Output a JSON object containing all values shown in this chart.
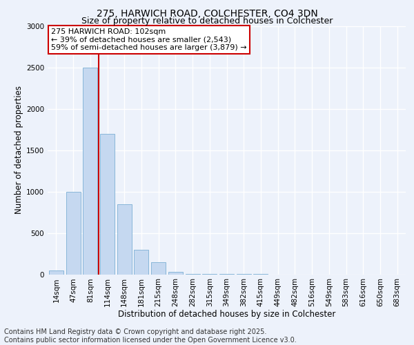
{
  "title_line1": "275, HARWICH ROAD, COLCHESTER, CO4 3DN",
  "title_line2": "Size of property relative to detached houses in Colchester",
  "xlabel": "Distribution of detached houses by size in Colchester",
  "ylabel": "Number of detached properties",
  "categories": [
    "14sqm",
    "47sqm",
    "81sqm",
    "114sqm",
    "148sqm",
    "181sqm",
    "215sqm",
    "248sqm",
    "282sqm",
    "315sqm",
    "349sqm",
    "382sqm",
    "415sqm",
    "449sqm",
    "482sqm",
    "516sqm",
    "549sqm",
    "583sqm",
    "616sqm",
    "650sqm",
    "683sqm"
  ],
  "values": [
    50,
    1000,
    2500,
    1700,
    850,
    300,
    150,
    30,
    8,
    4,
    2,
    1,
    1,
    0,
    0,
    0,
    0,
    0,
    0,
    0,
    0
  ],
  "bar_color": "#c5d8f0",
  "bar_edge_color": "#7bafd4",
  "property_line_x": 2.5,
  "property_label": "275 HARWICH ROAD: 102sqm",
  "annotation_line1": "← 39% of detached houses are smaller (2,543)",
  "annotation_line2": "59% of semi-detached houses are larger (3,879) →",
  "annotation_box_color": "#ffffff",
  "annotation_box_edge": "#cc0000",
  "line_color": "#cc0000",
  "ylim": [
    0,
    3000
  ],
  "yticks": [
    0,
    500,
    1000,
    1500,
    2000,
    2500,
    3000
  ],
  "footnote1": "Contains HM Land Registry data © Crown copyright and database right 2025.",
  "footnote2": "Contains public sector information licensed under the Open Government Licence v3.0.",
  "background_color": "#edf2fb",
  "plot_background": "#edf2fb",
  "grid_color": "#ffffff",
  "title_fontsize": 10,
  "subtitle_fontsize": 9,
  "axis_label_fontsize": 8.5,
  "tick_fontsize": 7.5,
  "annotation_fontsize": 8,
  "footnote_fontsize": 7
}
